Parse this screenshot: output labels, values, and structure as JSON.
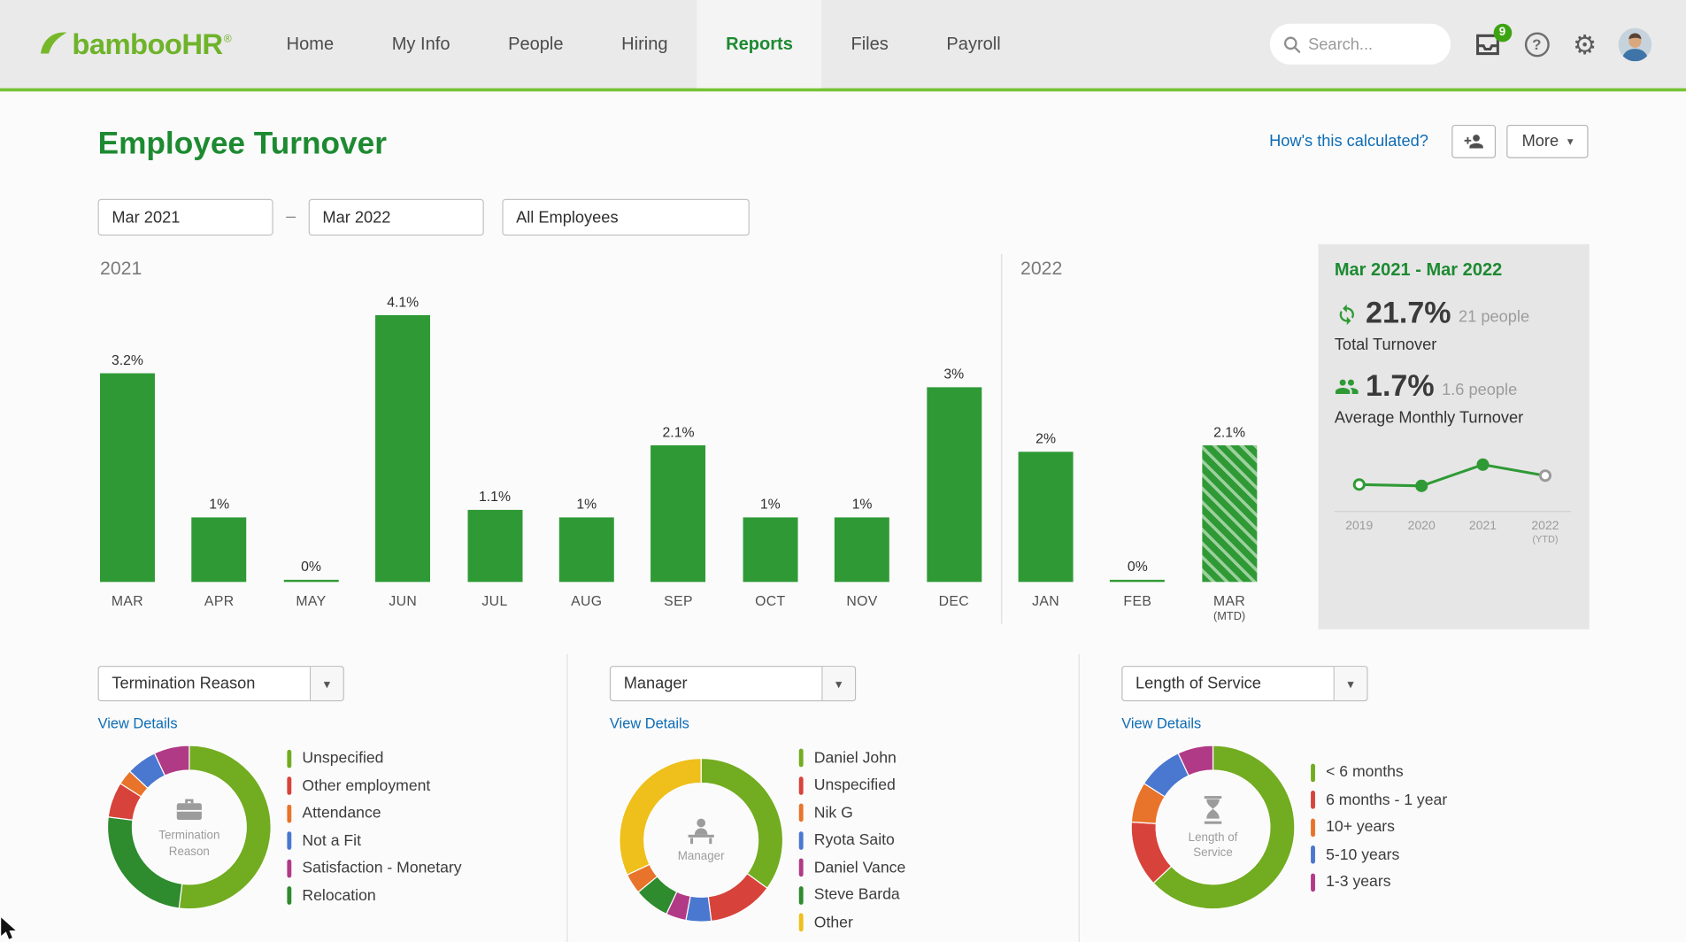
{
  "colors": {
    "brand_lime": "#76c434",
    "heading_green": "#1d8a31",
    "bar_green": "#2f9a35",
    "link_blue": "#0d6cb5",
    "summary_bg": "#e6e6e6",
    "badge_green": "#3ea312",
    "bright_green": "#72ac21",
    "dark_green": "#2e8b2e",
    "red": "#d7433b",
    "orange": "#e8732a",
    "blue": "#4a77cf",
    "magenta": "#b13a86",
    "yellow": "#efbf1b"
  },
  "brand": {
    "word": "bamboo",
    "suffix": "HR",
    "reg": "®"
  },
  "nav": {
    "items": [
      {
        "label": "Home"
      },
      {
        "label": "My Info"
      },
      {
        "label": "People"
      },
      {
        "label": "Hiring"
      },
      {
        "label": "Reports"
      },
      {
        "label": "Files"
      },
      {
        "label": "Payroll"
      }
    ],
    "active": "Reports"
  },
  "topbar": {
    "search_placeholder": "Search...",
    "inbox_badge": "9",
    "help_glyph": "?",
    "gear_glyph": "⚙"
  },
  "page": {
    "title": "Employee Turnover",
    "calc_link": "How's this calculated?",
    "more_label": "More",
    "caret": "▾"
  },
  "filters": {
    "start": "Mar 2021",
    "dash": "–",
    "end": "Mar 2022",
    "scope": "All Employees"
  },
  "summary": {
    "title": "Mar 2021 - Mar 2022",
    "total_pct": "21.7%",
    "total_people": "21 people",
    "total_label": "Total Turnover",
    "avg_pct": "1.7%",
    "avg_people": "1.6 people",
    "avg_label": "Average Monthly Turnover"
  },
  "panels": [
    {
      "dropdown_label": "Termination Reason",
      "view_details": "View Details",
      "center": [
        "Termination",
        "Reason"
      ]
    },
    {
      "dropdown_label": "Manager",
      "view_details": "View Details",
      "center": [
        "Manager"
      ]
    },
    {
      "dropdown_label": "Length of Service",
      "view_details": "View Details",
      "center": [
        "Length of",
        "Service"
      ]
    }
  ],
  "chart_data": [
    {
      "type": "bar",
      "title": "Monthly turnover rate",
      "unit": "%",
      "ylim": [
        0,
        4.5
      ],
      "groups": [
        {
          "label": "2021",
          "months": [
            "MAR",
            "APR",
            "MAY",
            "JUN",
            "JUL",
            "AUG",
            "SEP",
            "OCT",
            "NOV",
            "DEC"
          ],
          "values": [
            3.2,
            1,
            0,
            4.1,
            1.1,
            1,
            2.1,
            1,
            1,
            3
          ],
          "labels": [
            "3.2%",
            "1%",
            "0%",
            "4.1%",
            "1.1%",
            "1%",
            "2.1%",
            "1%",
            "1%",
            "3%"
          ]
        },
        {
          "label": "2022",
          "months": [
            "JAN",
            "FEB",
            "MAR"
          ],
          "subs": [
            "",
            "",
            "(MTD)"
          ],
          "values": [
            2,
            0,
            2.1
          ],
          "labels": [
            "2%",
            "0%",
            "2.1%"
          ],
          "hatched": [
            false,
            false,
            true
          ]
        }
      ]
    },
    {
      "type": "line",
      "title": "Annual turnover trend",
      "x": [
        "2019",
        "2020",
        "2021",
        "2022"
      ],
      "x_subs": [
        "",
        "",
        "",
        "(YTD)"
      ],
      "values": [
        15,
        14,
        30,
        21.7
      ],
      "ymax": 34,
      "markers": [
        {
          "fill": "#ffffff",
          "stroke": "#2f9a35"
        },
        {
          "fill": "#2f9a35",
          "stroke": "#2f9a35"
        },
        {
          "fill": "#2f9a35",
          "stroke": "#2f9a35"
        },
        {
          "fill": "#ffffff",
          "stroke": "#9a9a9a"
        }
      ]
    },
    {
      "type": "donut",
      "name": "termination-reason",
      "slices": [
        {
          "label": "Unspecified",
          "value": 52,
          "color": "#72ac21"
        },
        {
          "label": "Other employment",
          "value": 7,
          "color": "#d7433b"
        },
        {
          "label": "Attendance",
          "value": 3,
          "color": "#e8732a"
        },
        {
          "label": "Not a Fit",
          "value": 6,
          "color": "#4a77cf"
        },
        {
          "label": "Satisfaction - Monetary",
          "value": 7,
          "color": "#b13a86"
        },
        {
          "label": "Relocation",
          "value": 25,
          "color": "#2e8b2e"
        }
      ],
      "draw_order": [
        0,
        5,
        1,
        2,
        3,
        4
      ]
    },
    {
      "type": "donut",
      "name": "manager",
      "slices": [
        {
          "label": "Daniel John",
          "value": 35,
          "color": "#72ac21"
        },
        {
          "label": "Unspecified",
          "value": 13,
          "color": "#d7433b"
        },
        {
          "label": "Nik G",
          "value": 4,
          "color": "#e8732a"
        },
        {
          "label": "Ryota Saito",
          "value": 5,
          "color": "#4a77cf"
        },
        {
          "label": "Daniel Vance",
          "value": 4,
          "color": "#b13a86"
        },
        {
          "label": "Steve Barda",
          "value": 7,
          "color": "#2e8b2e"
        },
        {
          "label": "Other",
          "value": 32,
          "color": "#efbf1b"
        }
      ],
      "draw_order": [
        0,
        1,
        3,
        4,
        5,
        2,
        6
      ]
    },
    {
      "type": "donut",
      "name": "length-of-service",
      "slices": [
        {
          "label": "< 6 months",
          "value": 63,
          "color": "#72ac21"
        },
        {
          "label": "6 months - 1 year",
          "value": 13,
          "color": "#d7433b"
        },
        {
          "label": "10+ years",
          "value": 8,
          "color": "#e8732a"
        },
        {
          "label": "5-10 years",
          "value": 9,
          "color": "#4a77cf"
        },
        {
          "label": "1-3 years",
          "value": 7,
          "color": "#b13a86"
        }
      ],
      "draw_order": [
        0,
        1,
        2,
        3,
        4
      ]
    }
  ]
}
